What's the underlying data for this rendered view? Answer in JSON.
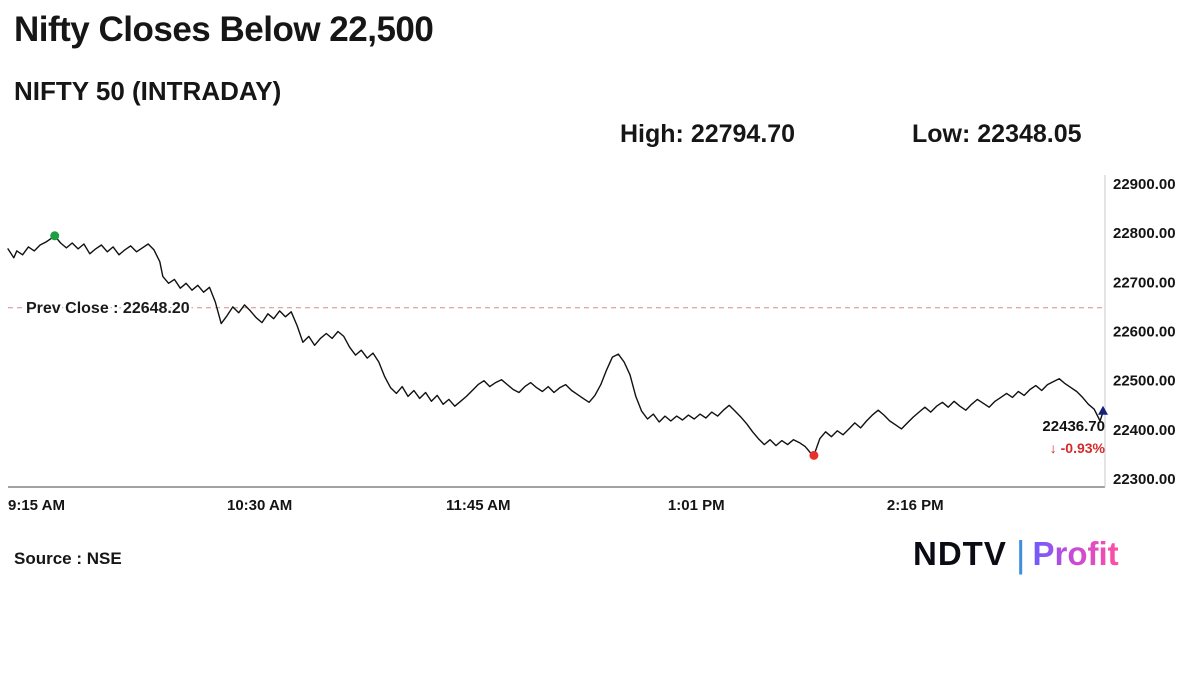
{
  "header": {
    "title": "Nifty Closes Below 22,500",
    "subtitle": "NIFTY 50 (INTRADAY)",
    "high_label": "High: 22794.70",
    "low_label": "Low: 22348.05"
  },
  "footer": {
    "source": "Source : NSE",
    "logo": {
      "ndtv": "NDTV",
      "separator": "|",
      "profit": "Profit"
    }
  },
  "chart_data": {
    "type": "line",
    "series_name": "NIFTY 50 intraday price",
    "x_unit": "minutes since 09:15 AM",
    "x_range": [
      0,
      375
    ],
    "y_range": [
      22300,
      22900
    ],
    "yticks": [
      22900,
      22800,
      22700,
      22600,
      22500,
      22400,
      22300
    ],
    "xticks": [
      {
        "t": 0,
        "label": "9:15 AM"
      },
      {
        "t": 75,
        "label": "10:30 AM"
      },
      {
        "t": 150,
        "label": "11:45 AM"
      },
      {
        "t": 226,
        "label": "1:01 PM"
      },
      {
        "t": 301,
        "label": "2:16 PM"
      }
    ],
    "prev_close": {
      "value": 22648.2,
      "label": "Prev Close : 22648.20"
    },
    "high": 22794.7,
    "low": 22348.05,
    "last": {
      "value": 22436.7,
      "label": "22436.70",
      "change_label": "↓ -0.93%"
    },
    "markers": {
      "high_t": 16,
      "low_t": 276
    },
    "colors": {
      "line": "#111111",
      "prev_close": "#e08a8a",
      "axis": "#444444",
      "high": "#1e9e42",
      "low": "#e8312a",
      "close": "#14227a"
    },
    "points": [
      [
        0,
        22768
      ],
      [
        2,
        22750
      ],
      [
        3,
        22764
      ],
      [
        5,
        22756
      ],
      [
        7,
        22772
      ],
      [
        9,
        22764
      ],
      [
        11,
        22776
      ],
      [
        13,
        22782
      ],
      [
        15,
        22790
      ],
      [
        16,
        22794.7
      ],
      [
        18,
        22780
      ],
      [
        20,
        22770
      ],
      [
        22,
        22780
      ],
      [
        24,
        22768
      ],
      [
        26,
        22778
      ],
      [
        28,
        22758
      ],
      [
        30,
        22768
      ],
      [
        32,
        22776
      ],
      [
        34,
        22762
      ],
      [
        36,
        22772
      ],
      [
        38,
        22756
      ],
      [
        40,
        22766
      ],
      [
        42,
        22774
      ],
      [
        44,
        22762
      ],
      [
        46,
        22770
      ],
      [
        48,
        22778
      ],
      [
        50,
        22766
      ],
      [
        52,
        22742
      ],
      [
        53,
        22712
      ],
      [
        55,
        22698
      ],
      [
        57,
        22706
      ],
      [
        59,
        22688
      ],
      [
        61,
        22698
      ],
      [
        63,
        22684
      ],
      [
        65,
        22694
      ],
      [
        67,
        22680
      ],
      [
        69,
        22690
      ],
      [
        71,
        22660
      ],
      [
        73,
        22616
      ],
      [
        75,
        22632
      ],
      [
        77,
        22650
      ],
      [
        79,
        22638
      ],
      [
        81,
        22654
      ],
      [
        83,
        22642
      ],
      [
        85,
        22628
      ],
      [
        87,
        22618
      ],
      [
        89,
        22636
      ],
      [
        91,
        22626
      ],
      [
        93,
        22642
      ],
      [
        95,
        22630
      ],
      [
        97,
        22640
      ],
      [
        99,
        22612
      ],
      [
        101,
        22578
      ],
      [
        103,
        22590
      ],
      [
        105,
        22572
      ],
      [
        107,
        22586
      ],
      [
        109,
        22596
      ],
      [
        111,
        22586
      ],
      [
        113,
        22600
      ],
      [
        115,
        22590
      ],
      [
        117,
        22568
      ],
      [
        119,
        22552
      ],
      [
        121,
        22562
      ],
      [
        123,
        22546
      ],
      [
        125,
        22556
      ],
      [
        127,
        22538
      ],
      [
        129,
        22508
      ],
      [
        131,
        22486
      ],
      [
        133,
        22474
      ],
      [
        135,
        22488
      ],
      [
        137,
        22468
      ],
      [
        139,
        22480
      ],
      [
        141,
        22464
      ],
      [
        143,
        22476
      ],
      [
        145,
        22458
      ],
      [
        147,
        22470
      ],
      [
        149,
        22452
      ],
      [
        151,
        22462
      ],
      [
        153,
        22448
      ],
      [
        155,
        22458
      ],
      [
        157,
        22468
      ],
      [
        159,
        22480
      ],
      [
        161,
        22492
      ],
      [
        163,
        22500
      ],
      [
        165,
        22488
      ],
      [
        167,
        22496
      ],
      [
        169,
        22502
      ],
      [
        171,
        22492
      ],
      [
        173,
        22482
      ],
      [
        175,
        22476
      ],
      [
        177,
        22488
      ],
      [
        179,
        22496
      ],
      [
        181,
        22486
      ],
      [
        183,
        22478
      ],
      [
        185,
        22488
      ],
      [
        187,
        22476
      ],
      [
        189,
        22486
      ],
      [
        191,
        22492
      ],
      [
        193,
        22480
      ],
      [
        195,
        22472
      ],
      [
        197,
        22464
      ],
      [
        199,
        22456
      ],
      [
        201,
        22470
      ],
      [
        203,
        22492
      ],
      [
        205,
        22522
      ],
      [
        207,
        22548
      ],
      [
        209,
        22554
      ],
      [
        211,
        22538
      ],
      [
        213,
        22512
      ],
      [
        215,
        22468
      ],
      [
        217,
        22438
      ],
      [
        219,
        22422
      ],
      [
        221,
        22432
      ],
      [
        223,
        22416
      ],
      [
        225,
        22428
      ],
      [
        227,
        22418
      ],
      [
        229,
        22428
      ],
      [
        231,
        22420
      ],
      [
        233,
        22430
      ],
      [
        235,
        22422
      ],
      [
        237,
        22432
      ],
      [
        239,
        22424
      ],
      [
        241,
        22436
      ],
      [
        243,
        22428
      ],
      [
        245,
        22440
      ],
      [
        247,
        22450
      ],
      [
        249,
        22438
      ],
      [
        251,
        22426
      ],
      [
        253,
        22412
      ],
      [
        255,
        22396
      ],
      [
        257,
        22382
      ],
      [
        259,
        22370
      ],
      [
        261,
        22380
      ],
      [
        263,
        22368
      ],
      [
        265,
        22378
      ],
      [
        267,
        22370
      ],
      [
        269,
        22380
      ],
      [
        271,
        22374
      ],
      [
        273,
        22366
      ],
      [
        275,
        22352
      ],
      [
        276,
        22348.05
      ],
      [
        278,
        22382
      ],
      [
        280,
        22396
      ],
      [
        282,
        22386
      ],
      [
        284,
        22398
      ],
      [
        286,
        22390
      ],
      [
        288,
        22402
      ],
      [
        290,
        22414
      ],
      [
        292,
        22404
      ],
      [
        294,
        22418
      ],
      [
        296,
        22430
      ],
      [
        298,
        22440
      ],
      [
        300,
        22430
      ],
      [
        302,
        22418
      ],
      [
        304,
        22410
      ],
      [
        306,
        22402
      ],
      [
        308,
        22414
      ],
      [
        310,
        22426
      ],
      [
        312,
        22436
      ],
      [
        314,
        22446
      ],
      [
        316,
        22436
      ],
      [
        318,
        22448
      ],
      [
        320,
        22456
      ],
      [
        322,
        22446
      ],
      [
        324,
        22458
      ],
      [
        326,
        22448
      ],
      [
        328,
        22440
      ],
      [
        330,
        22452
      ],
      [
        332,
        22462
      ],
      [
        334,
        22454
      ],
      [
        336,
        22446
      ],
      [
        338,
        22458
      ],
      [
        340,
        22466
      ],
      [
        342,
        22474
      ],
      [
        344,
        22466
      ],
      [
        346,
        22478
      ],
      [
        348,
        22470
      ],
      [
        350,
        22482
      ],
      [
        352,
        22490
      ],
      [
        354,
        22480
      ],
      [
        356,
        22492
      ],
      [
        358,
        22498
      ],
      [
        360,
        22504
      ],
      [
        362,
        22494
      ],
      [
        364,
        22486
      ],
      [
        366,
        22478
      ],
      [
        368,
        22466
      ],
      [
        370,
        22452
      ],
      [
        372,
        22442
      ],
      [
        374,
        22418
      ],
      [
        375,
        22436.7
      ]
    ]
  }
}
